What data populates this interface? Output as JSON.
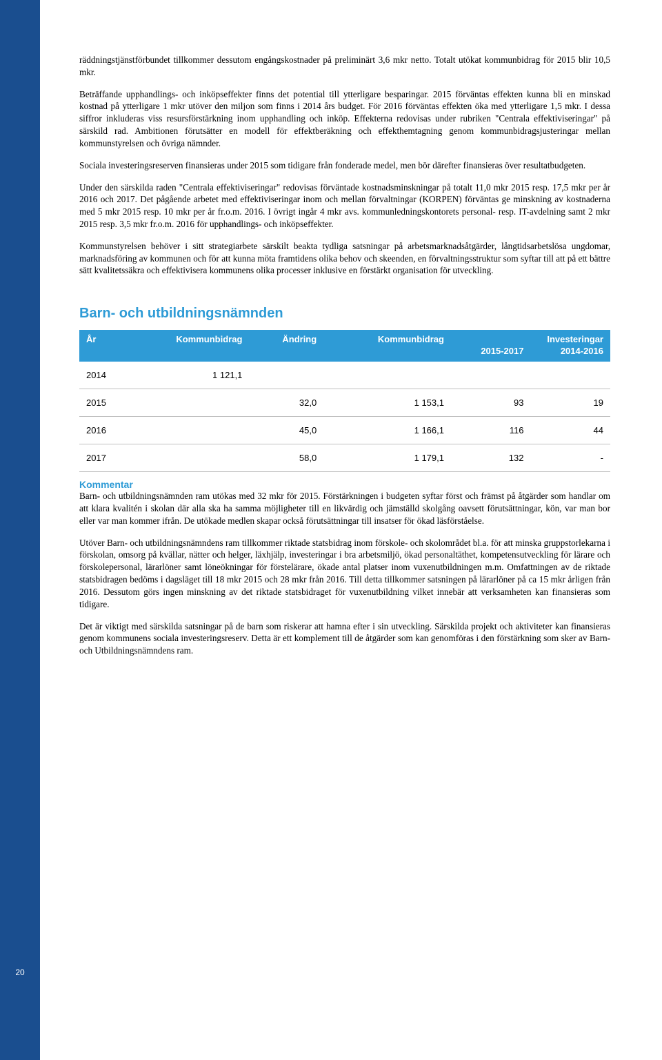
{
  "page_number": "20",
  "sidebar_color": "#1a4e8f",
  "accent_color": "#2e9bd6",
  "p1": "räddningstjänstförbundet tillkommer dessutom engångskostnader på preliminärt 3,6 mkr netto. Totalt utökat kommunbidrag för 2015 blir 10,5 mkr.",
  "p2": "Beträffande upphandlings- och inköpseffekter finns det potential till ytterligare besparingar. 2015 förväntas effekten kunna bli en minskad kostnad på ytterligare 1 mkr utöver den miljon som finns i 2014 års budget. För 2016 förväntas effekten öka med ytterligare 1,5 mkr. I dessa siffror inkluderas viss resursförstärkning inom upphandling och inköp. Effekterna redovisas under rubriken \"Centrala effektiviseringar\" på särskild rad. Ambitionen förutsätter en modell för effektberäkning och effekthemtagning genom kommunbidragsjusteringar mellan kommunstyrelsen och övriga nämnder.",
  "p3": "Sociala investeringsreserven finansieras under 2015 som tidigare från fonderade medel, men bör därefter finansieras över resultatbudgeten.",
  "p4": "Under den särskilda raden \"Centrala effektiviseringar\" redovisas förväntade kostnadsminskningar på totalt 11,0 mkr 2015 resp. 17,5 mkr per år 2016 och 2017. Det pågående arbetet med effektiviseringar inom och mellan förvaltningar (KORPEN) förväntas ge minskning av kostnaderna med 5 mkr 2015 resp. 10 mkr per år fr.o.m. 2016. I övrigt ingår 4 mkr avs. kommunledningskontorets personal- resp. IT-avdelning samt 2 mkr 2015 resp. 3,5 mkr fr.o.m. 2016 för upphandlings- och inköpseffekter.",
  "p5": "Kommunstyrelsen behöver i sitt strategiarbete särskilt beakta tydliga satsningar på arbetsmarknadsåtgärder, långtidsarbetslösa ungdomar, marknadsföring av kommunen och för att kunna möta framtidens olika behov och skeenden, en förvaltningsstruktur som syftar till att på ett bättre sätt kvalitetssäkra och effektivisera kommunens olika processer inklusive en förstärkt organisation för utveckling.",
  "section_title": "Barn- och utbildningsnämnden",
  "table": {
    "header": {
      "year": "År",
      "kommunbidrag": "Kommunbidrag",
      "andring": "Ändring",
      "kommunbidrag2": "Kommunbidrag",
      "investeringar": "Investeringar",
      "period1": "2015-2017",
      "period2": "2014-2016"
    },
    "rows": [
      {
        "year": "2014",
        "kb": "1 121,1",
        "andr": "",
        "kb2": "",
        "inv1": "",
        "inv2": ""
      },
      {
        "year": "2015",
        "kb": "",
        "andr": "32,0",
        "kb2": "1 153,1",
        "inv1": "93",
        "inv2": "19"
      },
      {
        "year": "2016",
        "kb": "",
        "andr": "45,0",
        "kb2": "1 166,1",
        "inv1": "116",
        "inv2": "44"
      },
      {
        "year": "2017",
        "kb": "",
        "andr": "58,0",
        "kb2": "1 179,1",
        "inv1": "132",
        "inv2": "-"
      }
    ]
  },
  "kommentar_heading": "Kommentar",
  "k1": "Barn- och utbildningsnämnden ram utökas med 32 mkr för 2015. Förstärkningen i budgeten syftar först och främst på åtgärder som handlar om att klara kvalitén i skolan där alla ska ha samma möjligheter till en likvärdig och jämställd skolgång oavsett förutsättningar, kön, var man bor eller var man kommer ifrån. De utökade medlen skapar också förutsättningar till insatser för ökad läsförståelse.",
  "k2": "Utöver Barn- och utbildningsnämndens ram tillkommer riktade statsbidrag inom förskole- och skolområdet bl.a. för att minska gruppstorlekarna i förskolan, omsorg på kvällar, nätter och helger, läxhjälp, investeringar i bra arbetsmiljö, ökad personaltäthet, kompetensutveckling för lärare och förskolepersonal, lärarlöner samt löneökningar för förstelärare, ökade antal platser inom vuxenutbildningen m.m. Omfattningen av de riktade statsbidragen bedöms i dagsläget till 18 mkr 2015 och 28 mkr från 2016. Till detta tillkommer satsningen på lärarlöner på ca 15 mkr årligen från 2016. Dessutom görs ingen minskning av det riktade statsbidraget för vuxenutbildning vilket innebär att verksamheten kan finansieras som tidigare.",
  "k3": "Det är viktigt med särskilda satsningar på de barn som riskerar att hamna efter i sin utveckling. Särskilda projekt och aktiviteter kan finansieras genom kommunens sociala investeringsreserv. Detta är ett komplement till de åtgärder som kan genomföras i den förstärkning som sker av Barn- och Utbildningsnämndens ram."
}
